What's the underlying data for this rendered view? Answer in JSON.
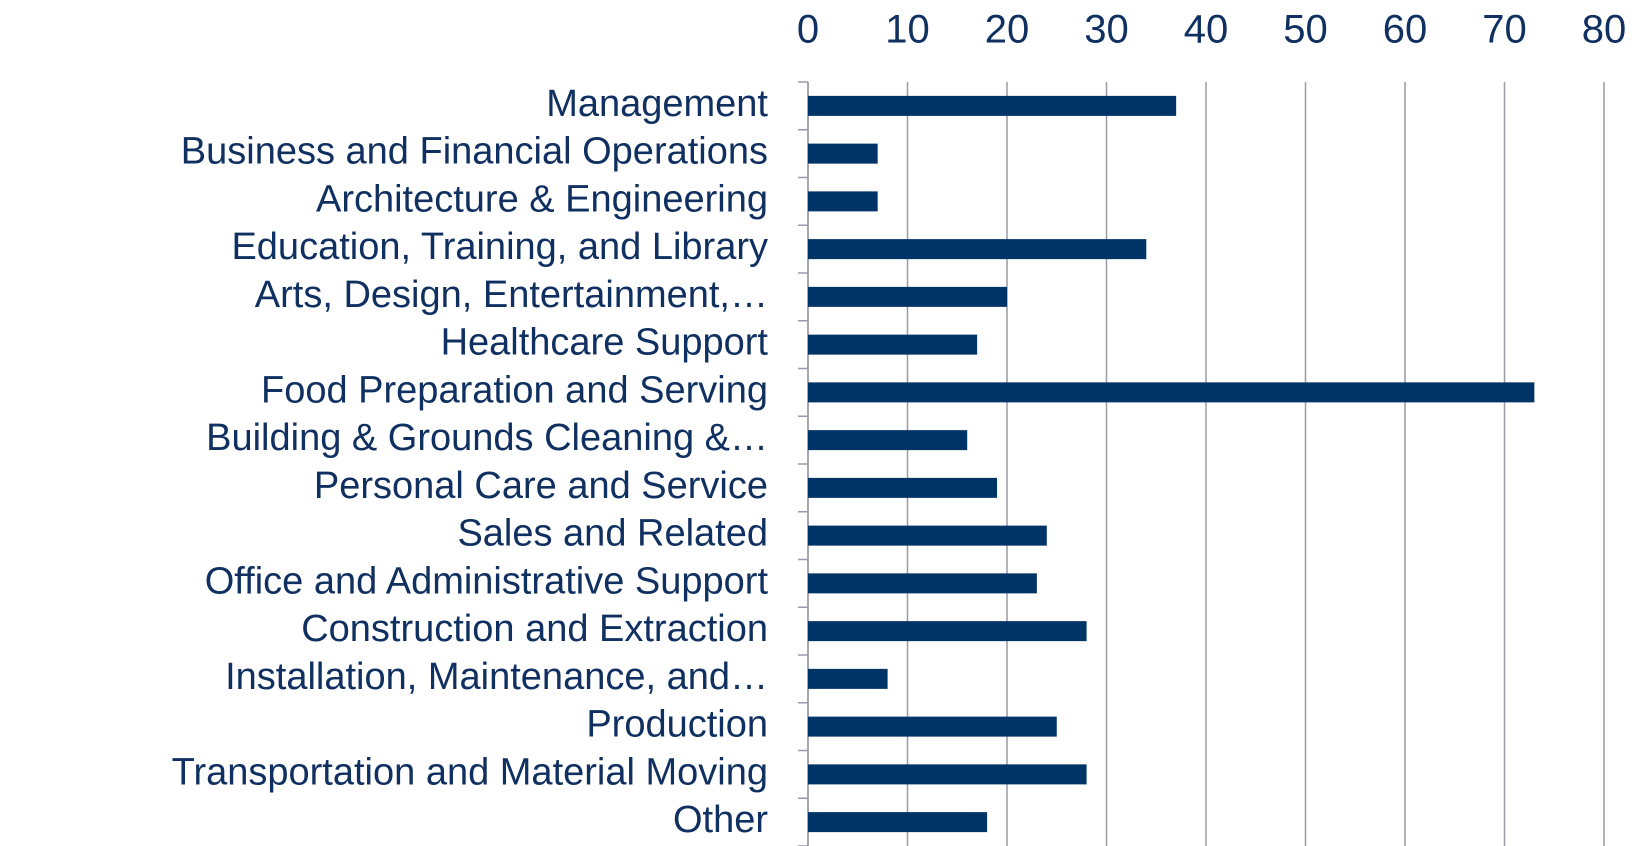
{
  "chart_data": {
    "type": "bar",
    "orientation": "horizontal",
    "categories": [
      "Management",
      "Business and Financial Operations",
      "Architecture & Engineering",
      "Education, Training, and Library",
      "Arts, Design, Entertainment,…",
      "Healthcare Support",
      "Food Preparation and Serving",
      "Building & Grounds Cleaning &…",
      "Personal Care and Service",
      "Sales and Related",
      "Office and Administrative Support",
      "Construction and Extraction",
      "Installation, Maintenance, and…",
      "Production",
      "Transportation and Material Moving",
      "Other"
    ],
    "values": [
      37,
      7,
      7,
      34,
      20,
      17,
      73,
      16,
      19,
      24,
      23,
      28,
      8,
      25,
      28,
      18
    ],
    "color": "#003366",
    "xlim": [
      0,
      80
    ],
    "xticks": [
      0,
      10,
      20,
      30,
      40,
      50,
      60,
      70,
      80
    ],
    "grid": true
  }
}
